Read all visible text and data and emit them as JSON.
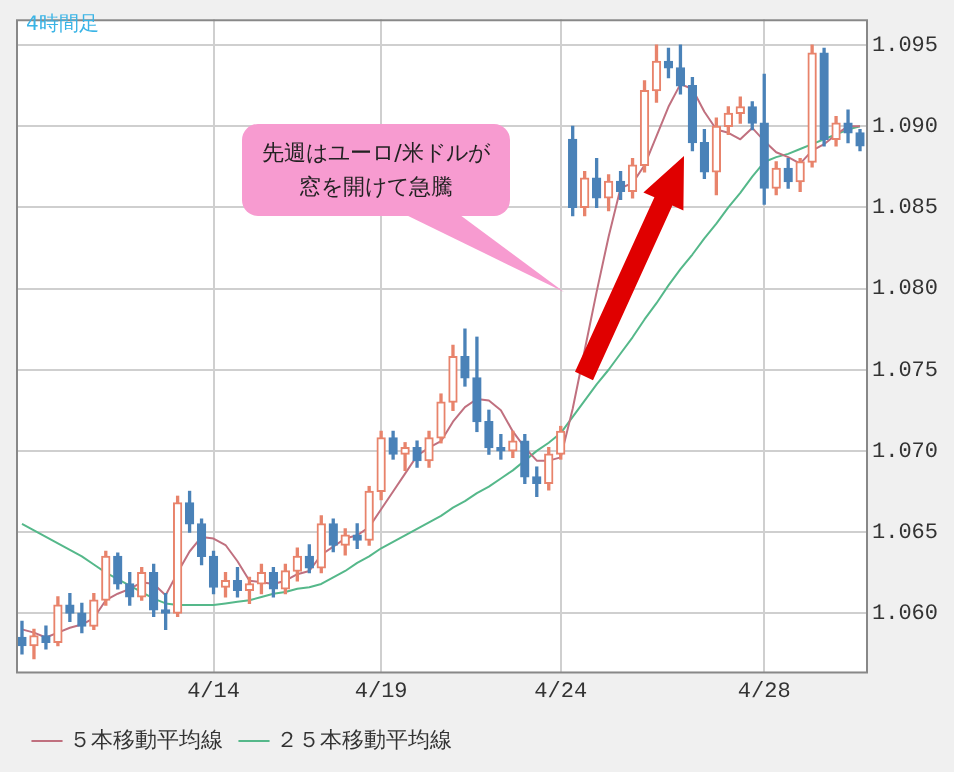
{
  "chart_data": {
    "type": "candlestick",
    "title": "4時間足",
    "annotations": [
      "先週はユーロ/米ドルが窓を開けて急騰"
    ],
    "categories": [
      null,
      null,
      null,
      null,
      null,
      null,
      null,
      null,
      null,
      null,
      null,
      null,
      null,
      null,
      null,
      null,
      "4/14",
      null,
      null,
      null,
      null,
      null,
      null,
      null,
      null,
      null,
      null,
      null,
      null,
      null,
      "4/19",
      null,
      null,
      null,
      null,
      null,
      null,
      null,
      null,
      null,
      null,
      null,
      null,
      null,
      null,
      "4/24",
      null,
      null,
      null,
      null,
      null,
      null,
      null,
      null,
      null,
      null,
      null,
      null,
      null,
      null,
      null,
      null,
      "4/28",
      null,
      null,
      null,
      null,
      null,
      null,
      null,
      null
    ],
    "ohlc": [
      [
        1.0585,
        1.0595,
        1.0575,
        1.058
      ],
      [
        1.058,
        1.059,
        1.0572,
        1.0586
      ],
      [
        1.0586,
        1.0592,
        1.0578,
        1.0582
      ],
      [
        1.0582,
        1.061,
        1.058,
        1.0605
      ],
      [
        1.0605,
        1.0612,
        1.0595,
        1.06
      ],
      [
        1.06,
        1.0606,
        1.0588,
        1.0592
      ],
      [
        1.0592,
        1.0612,
        1.059,
        1.0608
      ],
      [
        1.0608,
        1.0638,
        1.0605,
        1.0635
      ],
      [
        1.0635,
        1.0637,
        1.0615,
        1.0618
      ],
      [
        1.0618,
        1.0625,
        1.0605,
        1.061
      ],
      [
        1.061,
        1.0628,
        1.0608,
        1.0625
      ],
      [
        1.0625,
        1.063,
        1.0598,
        1.0602
      ],
      [
        1.0602,
        1.0612,
        1.059,
        1.06
      ],
      [
        1.06,
        1.0672,
        1.0598,
        1.0668
      ],
      [
        1.0668,
        1.0675,
        1.065,
        1.0655
      ],
      [
        1.0655,
        1.0658,
        1.063,
        1.0635
      ],
      [
        1.0635,
        1.0638,
        1.0612,
        1.0616
      ],
      [
        1.0616,
        1.0625,
        1.061,
        1.062
      ],
      [
        1.062,
        1.0628,
        1.061,
        1.0614
      ],
      [
        1.0614,
        1.0622,
        1.0606,
        1.0618
      ],
      [
        1.0618,
        1.063,
        1.0612,
        1.0625
      ],
      [
        1.0625,
        1.0628,
        1.061,
        1.0615
      ],
      [
        1.0615,
        1.063,
        1.0612,
        1.0626
      ],
      [
        1.0626,
        1.064,
        1.062,
        1.0635
      ],
      [
        1.0635,
        1.0642,
        1.0625,
        1.0628
      ],
      [
        1.0628,
        1.066,
        1.0625,
        1.0655
      ],
      [
        1.0655,
        1.0658,
        1.0638,
        1.0642
      ],
      [
        1.0642,
        1.0652,
        1.0636,
        1.0648
      ],
      [
        1.0648,
        1.0655,
        1.064,
        1.0645
      ],
      [
        1.0645,
        1.0678,
        1.0642,
        1.0675
      ],
      [
        1.0675,
        1.0712,
        1.067,
        1.0708
      ],
      [
        1.0708,
        1.0712,
        1.0695,
        1.0698
      ],
      [
        1.0698,
        1.0705,
        1.0688,
        1.0702
      ],
      [
        1.0702,
        1.0706,
        1.069,
        1.0694
      ],
      [
        1.0694,
        1.0712,
        1.069,
        1.0708
      ],
      [
        1.0708,
        1.0735,
        1.0705,
        1.073
      ],
      [
        1.073,
        1.0765,
        1.0725,
        1.0758
      ],
      [
        1.0758,
        1.0775,
        1.074,
        1.0745
      ],
      [
        1.0745,
        1.077,
        1.0712,
        1.0718
      ],
      [
        1.0718,
        1.0725,
        1.0698,
        1.0702
      ],
      [
        1.0702,
        1.071,
        1.0695,
        1.07
      ],
      [
        1.07,
        1.0712,
        1.0696,
        1.0706
      ],
      [
        1.0706,
        1.071,
        1.068,
        1.0684
      ],
      [
        1.0684,
        1.069,
        1.0672,
        1.068
      ],
      [
        1.068,
        1.0702,
        1.0676,
        1.0698
      ],
      [
        1.0698,
        1.0715,
        1.0695,
        1.0712
      ],
      [
        1.0892,
        1.09,
        1.0845,
        1.085
      ],
      [
        1.085,
        1.0872,
        1.0845,
        1.0868
      ],
      [
        1.0868,
        1.088,
        1.085,
        1.0856
      ],
      [
        1.0856,
        1.087,
        1.0848,
        1.0866
      ],
      [
        1.0866,
        1.0872,
        1.0855,
        1.086
      ],
      [
        1.086,
        1.088,
        1.0856,
        1.0876
      ],
      [
        1.0876,
        1.0928,
        1.0872,
        1.0922
      ],
      [
        1.0922,
        1.095,
        1.0915,
        1.094
      ],
      [
        1.094,
        1.0948,
        1.093,
        1.0936
      ],
      [
        1.0936,
        1.095,
        1.092,
        1.0925
      ],
      [
        1.0925,
        1.093,
        1.0885,
        1.089
      ],
      [
        1.089,
        1.0898,
        1.0868,
        1.0872
      ],
      [
        1.0872,
        1.0905,
        1.0858,
        1.09
      ],
      [
        1.09,
        1.0912,
        1.0895,
        1.0908
      ],
      [
        1.0908,
        1.0918,
        1.0902,
        1.0912
      ],
      [
        1.0912,
        1.0915,
        1.0898,
        1.0902
      ],
      [
        1.0902,
        1.0932,
        1.0852,
        1.0862
      ],
      [
        1.0862,
        1.0878,
        1.0858,
        1.0874
      ],
      [
        1.0874,
        1.088,
        1.0862,
        1.0866
      ],
      [
        1.0866,
        1.088,
        1.086,
        1.0878
      ],
      [
        1.0878,
        1.095,
        1.0875,
        1.0945
      ],
      [
        1.0945,
        1.0948,
        1.0888,
        1.0892
      ],
      [
        1.0892,
        1.0906,
        1.0888,
        1.0902
      ],
      [
        1.0902,
        1.091,
        1.089,
        1.0896
      ],
      [
        1.0896,
        1.0898,
        1.0885,
        1.0888
      ]
    ],
    "series": [
      {
        "name": "５本移動平均線",
        "type": "line",
        "color": "#c0707f",
        "values": [
          1.059,
          1.0588,
          1.0585,
          1.0588,
          1.0591,
          1.0593,
          1.0597,
          1.0608,
          1.0612,
          1.0615,
          1.0619,
          1.0618,
          1.0611,
          1.0625,
          1.0638,
          1.0647,
          1.0646,
          1.0642,
          1.0632,
          1.062,
          1.0619,
          1.0618,
          1.062,
          1.0624,
          1.0626,
          1.0636,
          1.0641,
          1.0646,
          1.0648,
          1.0653,
          1.0664,
          1.0675,
          1.0686,
          1.0697,
          1.0702,
          1.0706,
          1.0718,
          1.0727,
          1.0732,
          1.0731,
          1.0725,
          1.0712,
          1.0702,
          1.0694,
          1.0694,
          1.0696,
          1.0726,
          1.0762,
          1.0798,
          1.0832,
          1.0862,
          1.0865,
          1.0876,
          1.0894,
          1.0912,
          1.0926,
          1.0923,
          1.0909,
          1.0898,
          1.0896,
          1.0892,
          1.0899,
          1.0891,
          1.0884,
          1.0881,
          1.0877,
          1.0885,
          1.0889,
          1.0895,
          1.09,
          1.09
        ]
      },
      {
        "name": "２５本移動平均線",
        "type": "line",
        "color": "#55b88a",
        "values": [
          1.0655,
          1.0651,
          1.0647,
          1.0643,
          1.0639,
          1.0635,
          1.063,
          1.0625,
          1.0621,
          1.0617,
          1.0613,
          1.0609,
          1.0606,
          1.0605,
          1.0605,
          1.0605,
          1.0605,
          1.0606,
          1.0607,
          1.0608,
          1.061,
          1.0612,
          1.0613,
          1.0615,
          1.0616,
          1.0618,
          1.0622,
          1.0626,
          1.0631,
          1.0635,
          1.064,
          1.0644,
          1.0648,
          1.0652,
          1.0656,
          1.066,
          1.0665,
          1.0669,
          1.0674,
          1.0678,
          1.0683,
          1.0688,
          1.0694,
          1.07,
          1.0705,
          1.0711,
          1.0721,
          1.0731,
          1.0741,
          1.075,
          1.076,
          1.077,
          1.0781,
          1.0791,
          1.0802,
          1.0812,
          1.0821,
          1.0831,
          1.084,
          1.085,
          1.0859,
          1.0869,
          1.0878,
          1.0881,
          1.0883,
          1.0886,
          1.0889,
          1.0892,
          1.0895,
          1.0898,
          1.09
        ]
      }
    ],
    "ylim": [
      1.0564,
      1.0966
    ],
    "yticks": [
      {
        "value": 1.06,
        "label": "1.060"
      },
      1.065,
      {
        "value": 1.07,
        "label": "1.070"
      },
      1.075,
      {
        "value": 1.08,
        "label": "1.080"
      },
      1.085,
      {
        "value": 1.09,
        "label": "1.090"
      },
      1.095
    ],
    "grid": true,
    "legend": "bottom left",
    "marker": "none",
    "line_style": "solid"
  }
}
